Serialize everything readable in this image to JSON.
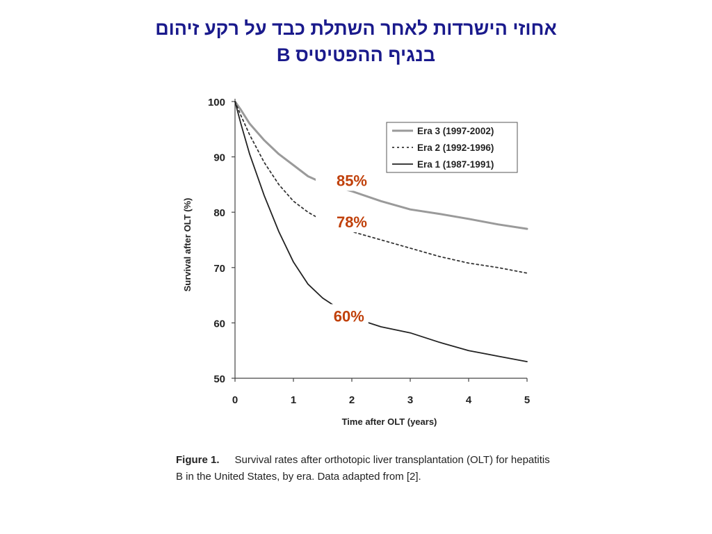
{
  "slide": {
    "title_line1": "אחוזי הישרדות לאחר השתלת כבד על רקע זיהום",
    "title_line2": "בנגיף ההפטיטיס B"
  },
  "figure": {
    "label": "Figure 1.",
    "caption": "Survival rates after orthotopic liver transplantation (OLT) for hepatitis B in the United States, by era. Data adapted from [2]."
  },
  "colors": {
    "title": "#1a1a8c",
    "annotation": "#c0400a",
    "era3": "#9a9a9a",
    "era2": "#333333",
    "era1": "#222222"
  },
  "chart_data": {
    "type": "line",
    "title": "",
    "xlabel": "Time after OLT (years)",
    "ylabel": "Survival after OLT (%)",
    "xlim": [
      0,
      5
    ],
    "ylim": [
      50,
      100
    ],
    "x_ticks": [
      "0",
      "1",
      "2",
      "3",
      "4",
      "5"
    ],
    "y_ticks": [
      "50",
      "60",
      "70",
      "80",
      "90",
      "100"
    ],
    "grid": false,
    "legend_position": "top-right",
    "series": [
      {
        "name": "Era 3 (1997-2002)",
        "style": "solid-light",
        "x": [
          0,
          0.1,
          0.25,
          0.5,
          0.75,
          1.0,
          1.25,
          1.5,
          2.0,
          2.5,
          3.0,
          3.5,
          4.0,
          4.5,
          5.0
        ],
        "y": [
          100,
          98.5,
          96,
          93,
          90.5,
          88.5,
          86.5,
          85.3,
          83.8,
          82,
          80.5,
          79.7,
          78.8,
          77.8,
          77
        ]
      },
      {
        "name": "Era 2 (1992-1996)",
        "style": "dotted",
        "x": [
          0,
          0.1,
          0.25,
          0.5,
          0.75,
          1.0,
          1.25,
          1.5,
          2.0,
          2.5,
          3.0,
          3.5,
          4.0,
          4.5,
          5.0
        ],
        "y": [
          100,
          97.5,
          94,
          89,
          85,
          82,
          80,
          78.5,
          76.5,
          75,
          73.5,
          72,
          70.8,
          70,
          69
        ]
      },
      {
        "name": "Era 1 (1987-1991)",
        "style": "solid-dark",
        "x": [
          0,
          0.1,
          0.25,
          0.5,
          0.75,
          1.0,
          1.25,
          1.5,
          2.0,
          2.5,
          3.0,
          3.5,
          4.0,
          4.5,
          5.0
        ],
        "y": [
          100,
          96,
          90.5,
          83,
          76.5,
          71,
          67,
          64.5,
          61,
          59.3,
          58.2,
          56.5,
          55,
          54,
          53
        ]
      }
    ],
    "annotations": [
      {
        "text": "85%",
        "x": 2.0,
        "y": 85.5
      },
      {
        "text": "78%",
        "x": 2.0,
        "y": 78
      },
      {
        "text": "60%",
        "x": 1.95,
        "y": 61
      }
    ]
  }
}
